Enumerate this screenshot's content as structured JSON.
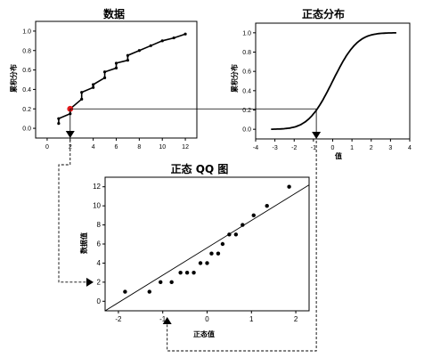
{
  "chart_data": [
    {
      "id": "data",
      "type": "line",
      "title": "数据",
      "xlabel": "",
      "ylabel": "累积分布",
      "xlim": [
        -1,
        13
      ],
      "ylim": [
        -0.1,
        1.1
      ],
      "xticks": [
        0,
        2,
        4,
        6,
        8,
        10,
        12
      ],
      "yticks": [
        0.0,
        0.2,
        0.4,
        0.6,
        0.8,
        1.0
      ],
      "grid": false,
      "x": [
        1,
        1,
        2,
        2,
        3,
        3,
        4,
        4,
        5,
        5,
        6,
        6,
        7,
        7,
        8,
        9,
        10,
        11,
        12
      ],
      "y": [
        0.05,
        0.1,
        0.15,
        0.2,
        0.3,
        0.37,
        0.42,
        0.45,
        0.52,
        0.58,
        0.62,
        0.67,
        0.7,
        0.75,
        0.8,
        0.85,
        0.9,
        0.93,
        0.97
      ],
      "highlight": {
        "x": 2,
        "y": 0.2,
        "color": "#e31a1c"
      }
    },
    {
      "id": "normal",
      "type": "line",
      "title": "正态分布",
      "xlabel": "值",
      "ylabel": "累积分布",
      "xlim": [
        -4,
        4
      ],
      "ylim": [
        -0.1,
        1.1
      ],
      "xticks": [
        -4,
        -3,
        -2,
        -1,
        0,
        1,
        2,
        3,
        4
      ],
      "yticks": [
        0.0,
        0.2,
        0.4,
        0.6,
        0.8,
        1.0
      ],
      "grid": false,
      "x_range": [
        -3.2,
        3.3
      ],
      "function": "normal_cdf",
      "marker_x": -0.85
    },
    {
      "id": "qq",
      "type": "scatter",
      "title": "正态 QQ 图",
      "xlabel": "正态值",
      "ylabel": "数据值",
      "xlim": [
        -2.3,
        2.3
      ],
      "ylim": [
        -1,
        13
      ],
      "xticks": [
        -2,
        -1,
        0,
        1,
        2
      ],
      "yticks": [
        0,
        2,
        4,
        6,
        8,
        10,
        12
      ],
      "grid": false,
      "x": [
        -1.85,
        -1.3,
        -1.05,
        -0.8,
        -0.6,
        -0.45,
        -0.3,
        -0.15,
        0.0,
        0.1,
        0.25,
        0.35,
        0.5,
        0.65,
        0.8,
        1.05,
        1.35,
        1.85
      ],
      "y": [
        1,
        1,
        2,
        2,
        3,
        3,
        3,
        4,
        4,
        5,
        5,
        6,
        7,
        7,
        8,
        9,
        10,
        12
      ],
      "fit_line": {
        "x": [
          -2.3,
          2.3
        ],
        "y": [
          -1.0,
          12.2
        ]
      },
      "marker_y": 2
    }
  ],
  "colors": {
    "highlight": "#e31a1c",
    "ink": "#000000",
    "connector": "#000000"
  }
}
